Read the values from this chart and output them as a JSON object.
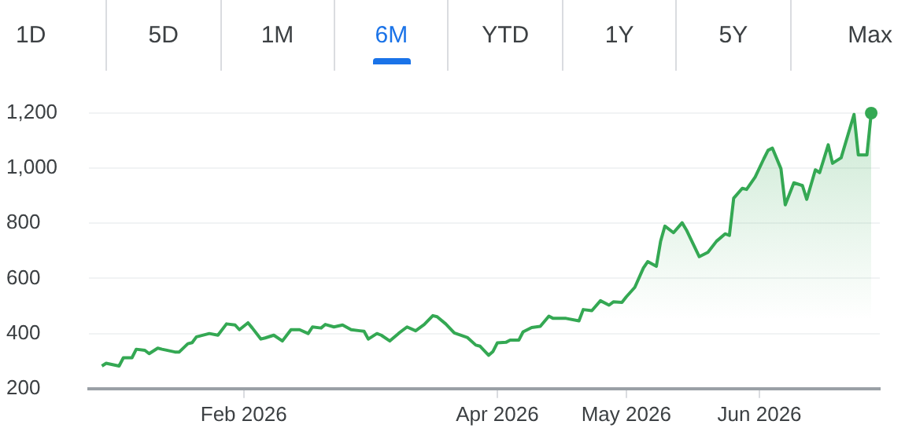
{
  "chart_data": {
    "type": "area",
    "color": "#34a853",
    "grid": "y",
    "annotations": [
      "1D",
      "5D",
      "1M",
      "6M",
      "YTD",
      "1Y",
      "5Y",
      "Max"
    ],
    "x": [
      "2025-12-30",
      "2025-12-31",
      "2026-01-03",
      "2026-01-04",
      "2026-01-06",
      "2026-01-07",
      "2026-01-09",
      "2026-01-10",
      "2026-01-12",
      "2026-01-13",
      "2026-01-16",
      "2026-01-17",
      "2026-01-19",
      "2026-01-20",
      "2026-01-21",
      "2026-01-24",
      "2026-01-26",
      "2026-01-28",
      "2026-01-30",
      "2026-01-31",
      "2026-02-02",
      "2026-02-03",
      "2026-02-05",
      "2026-02-06",
      "2026-02-08",
      "2026-02-10",
      "2026-02-12",
      "2026-02-14",
      "2026-02-16",
      "2026-02-17",
      "2026-02-19",
      "2026-02-20",
      "2026-02-22",
      "2026-02-24",
      "2026-02-26",
      "2026-02-28",
      "2026-03-01",
      "2026-03-02",
      "2026-03-04",
      "2026-03-05",
      "2026-03-07",
      "2026-03-09",
      "2026-03-11",
      "2026-03-13",
      "2026-03-15",
      "2026-03-17",
      "2026-03-18",
      "2026-03-20",
      "2026-03-22",
      "2026-03-25",
      "2026-03-27",
      "2026-03-28",
      "2026-03-30",
      "2026-03-31",
      "2026-04-01",
      "2026-04-03",
      "2026-04-04",
      "2026-04-06",
      "2026-04-07",
      "2026-04-09",
      "2026-04-11",
      "2026-04-13",
      "2026-04-14",
      "2026-04-17",
      "2026-04-20",
      "2026-04-21",
      "2026-04-23",
      "2026-04-25",
      "2026-04-27",
      "2026-04-28",
      "2026-04-30",
      "2026-05-01",
      "2026-05-03",
      "2026-05-05",
      "2026-05-06",
      "2026-05-08",
      "2026-05-09",
      "2026-05-10",
      "2026-05-12",
      "2026-05-14",
      "2026-05-15",
      "2026-05-18",
      "2026-05-20",
      "2026-05-22",
      "2026-05-24",
      "2026-05-25",
      "2026-05-26",
      "2026-05-28",
      "2026-05-29",
      "2026-05-31",
      "2026-06-02",
      "2026-06-03",
      "2026-06-04",
      "2026-06-06",
      "2026-06-07",
      "2026-06-09",
      "2026-06-11",
      "2026-06-12",
      "2026-06-14",
      "2026-06-15",
      "2026-06-17",
      "2026-06-18",
      "2026-06-20",
      "2026-06-23",
      "2026-06-24",
      "2026-06-26",
      "2026-06-27"
    ],
    "values": [
      282,
      292,
      282,
      312,
      312,
      343,
      339,
      327,
      347,
      343,
      333,
      333,
      363,
      367,
      388,
      400,
      394,
      435,
      431,
      414,
      439,
      420,
      380,
      384,
      394,
      373,
      414,
      414,
      400,
      424,
      420,
      433,
      424,
      431,
      414,
      410,
      408,
      380,
      400,
      394,
      373,
      400,
      424,
      410,
      433,
      465,
      461,
      435,
      402,
      386,
      358,
      354,
      321,
      335,
      366,
      368,
      376,
      376,
      406,
      422,
      426,
      463,
      455,
      455,
      446,
      487,
      483,
      519,
      503,
      515,
      513,
      533,
      568,
      638,
      661,
      644,
      735,
      790,
      766,
      802,
      776,
      679,
      695,
      735,
      762,
      756,
      891,
      927,
      923,
      968,
      1034,
      1065,
      1073,
      998,
      867,
      947,
      937,
      887,
      994,
      984,
      1085,
      1018,
      1038,
      1195,
      1048,
      1048,
      1200
    ],
    "xlim": [
      "2025-12-27",
      "2026-06-29"
    ],
    "xticks": [
      {
        "value": "2026-02-01",
        "label": "Feb 2026"
      },
      {
        "value": "2026-04-01",
        "label": "Apr 2026"
      },
      {
        "value": "2026-05-01",
        "label": "May 2026"
      },
      {
        "value": "2026-06-01",
        "label": "Jun 2026"
      }
    ],
    "ylim": [
      200,
      1200
    ],
    "yticks": [
      200,
      400,
      600,
      800,
      {
        "value": 1000,
        "label": "1,000"
      },
      {
        "value": 1200,
        "label": "1,200"
      }
    ]
  }
}
